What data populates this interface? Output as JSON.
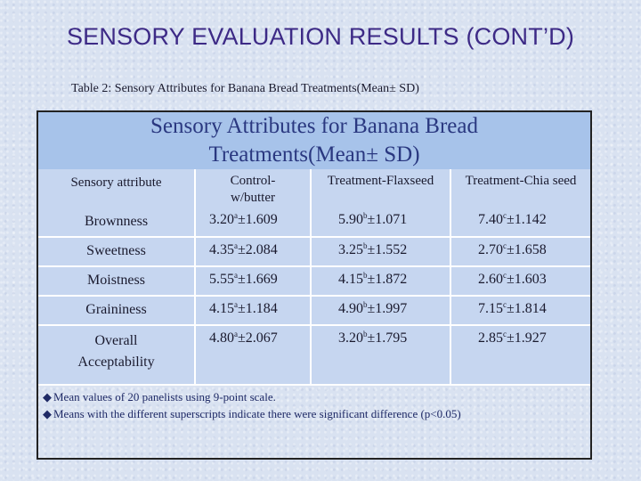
{
  "slide": {
    "title": "SENSORY EVALUATION RESULTS (CONT’D)",
    "caption": "Table 2: Sensory Attributes for Banana Bread Treatments(Mean± SD)"
  },
  "table": {
    "title_line1": "Sensory Attributes for Banana Bread",
    "title_line2": "Treatments(Mean± SD)",
    "headers": {
      "attribute": "Sensory attribute",
      "control_line1": "Control-",
      "control_line2": "w/butter",
      "flax": "Treatment-Flaxseed",
      "chia": "Treatment-Chia seed"
    },
    "rows": [
      {
        "attribute": "Brownness",
        "control": {
          "mean": "3.20",
          "sup": "a",
          "sd": "±1.609"
        },
        "flax": {
          "mean": "5.90",
          "sup": "b",
          "sd": "±1.071"
        },
        "chia": {
          "mean": "7.40",
          "sup": "c",
          "sd": "±1.142"
        }
      },
      {
        "attribute": "Sweetness",
        "control": {
          "mean": "4.35",
          "sup": "a",
          "sd": "±2.084"
        },
        "flax": {
          "mean": "3.25",
          "sup": "b",
          "sd": "±1.552"
        },
        "chia": {
          "mean": "2.70",
          "sup": "c",
          "sd": "±1.658"
        }
      },
      {
        "attribute": "Moistness",
        "control": {
          "mean": "5.55",
          "sup": "a",
          "sd": "±1.669"
        },
        "flax": {
          "mean": "4.15",
          "sup": "b",
          "sd": "±1.872"
        },
        "chia": {
          "mean": "2.60",
          "sup": "c",
          "sd": "±1.603"
        }
      },
      {
        "attribute": "Graininess",
        "control": {
          "mean": "4.15",
          "sup": "a",
          "sd": "±1.184"
        },
        "flax": {
          "mean": "4.90",
          "sup": "b",
          "sd": "±1.997"
        },
        "chia": {
          "mean": "7.15",
          "sup": "c",
          "sd": "±1.814"
        }
      },
      {
        "attribute_line1": "Overall",
        "attribute_line2": "Acceptability",
        "control": {
          "mean": "4.80",
          "sup": "a",
          "sd": "±2.067"
        },
        "flax": {
          "mean": "3.20",
          "sup": "b",
          "sd": "±1.795"
        },
        "chia": {
          "mean": "2.85",
          "sup": "c",
          "sd": "±1.927"
        }
      }
    ],
    "notes": [
      "Mean values of 20 panelists using 9-point scale.",
      "Means with the different superscripts indicate there were significant difference (p<0.05)"
    ],
    "note_bullet_icon": "diamond-bullet"
  },
  "colors": {
    "title": "#3d2a86",
    "table_title_band": "#a7c3ea",
    "grid_fill": "#c6d6f0"
  }
}
